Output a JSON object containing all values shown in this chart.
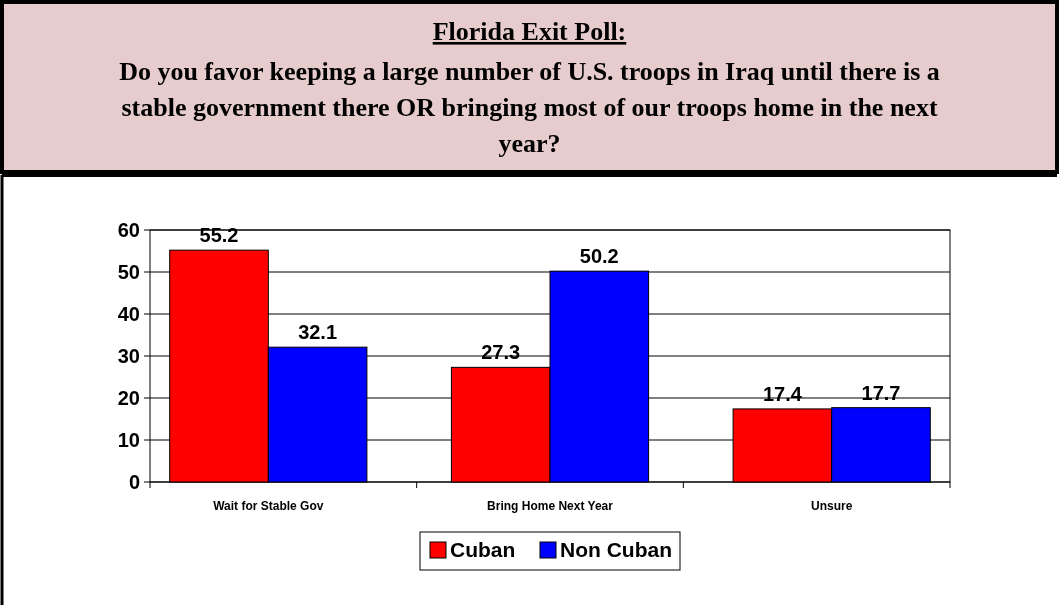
{
  "chart_data": {
    "type": "bar",
    "title": "Florida Exit Poll:",
    "subtitle": "Do you favor keeping a large number of U.S. troops in Iraq until there is a stable government there OR bringing most of our troops home in the next year?",
    "categories": [
      "Wait for Stable Gov",
      "Bring Home Next Year",
      "Unsure"
    ],
    "series": [
      {
        "name": "Cuban",
        "color": "#ff0000",
        "values": [
          55.2,
          27.3,
          17.4
        ]
      },
      {
        "name": "Non Cuban",
        "color": "#0000ff",
        "values": [
          32.1,
          50.2,
          17.7
        ]
      }
    ],
    "ylim": [
      0,
      60
    ],
    "yticks": [
      0,
      10,
      20,
      30,
      40,
      50,
      60
    ],
    "grid": "y",
    "data_labels": true,
    "legend": "bottom"
  }
}
